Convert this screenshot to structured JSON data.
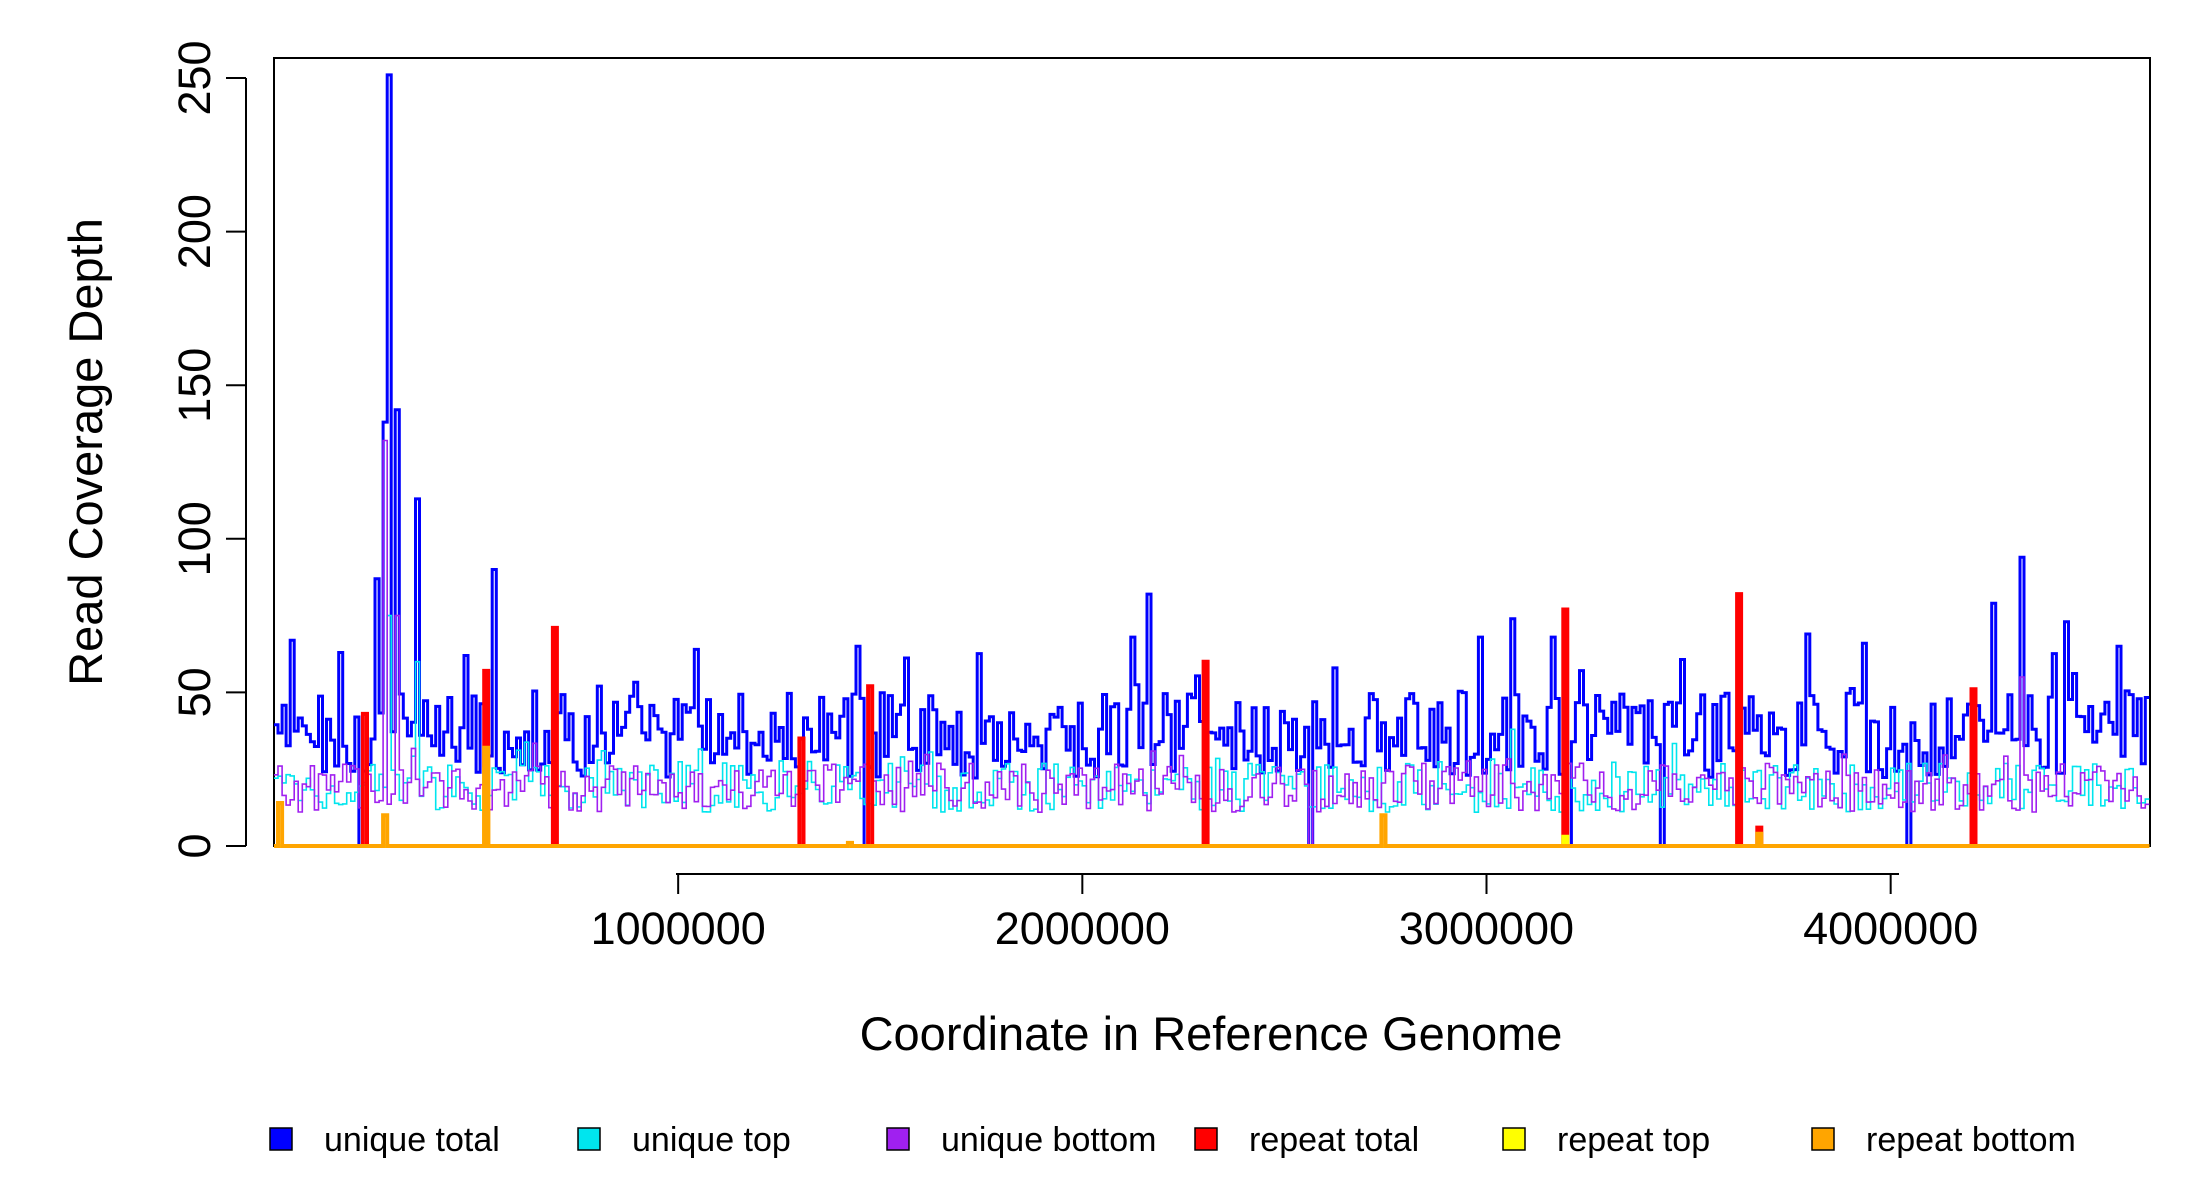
{
  "chart_data": {
    "type": "line",
    "xlabel": "Coordinate in Reference Genome",
    "ylabel": "Read Coverage Depth",
    "xlim": [
      0,
      4641652
    ],
    "ylim": [
      0,
      250
    ],
    "x_ticks": [
      1000000,
      2000000,
      3000000,
      4000000
    ],
    "x_tick_labels": [
      "1000000",
      "2000000",
      "3000000",
      "4000000"
    ],
    "y_ticks": [
      0,
      50,
      100,
      150,
      200,
      250
    ],
    "y_tick_labels": [
      "0",
      "50",
      "100",
      "150",
      "200",
      "250"
    ],
    "bin_size": 10000,
    "legend_position": "bottom",
    "series": [
      {
        "name": "unique total",
        "color": "#0000ff",
        "base": 36,
        "spikes": [
          {
            "x": 40000,
            "y": 67
          },
          {
            "x": 160000,
            "y": 63
          },
          {
            "x": 250000,
            "y": 87
          },
          {
            "x": 270000,
            "y": 138
          },
          {
            "x": 280000,
            "y": 251
          },
          {
            "x": 300000,
            "y": 142
          },
          {
            "x": 350000,
            "y": 113
          },
          {
            "x": 470000,
            "y": 62
          },
          {
            "x": 540000,
            "y": 90
          },
          {
            "x": 1040000,
            "y": 64
          },
          {
            "x": 1440000,
            "y": 65
          },
          {
            "x": 2120000,
            "y": 68
          },
          {
            "x": 2160000,
            "y": 82
          },
          {
            "x": 2980000,
            "y": 68
          },
          {
            "x": 3060000,
            "y": 74
          },
          {
            "x": 3160000,
            "y": 68
          },
          {
            "x": 3790000,
            "y": 69
          },
          {
            "x": 3930000,
            "y": 66
          },
          {
            "x": 4250000,
            "y": 79
          },
          {
            "x": 4320000,
            "y": 94
          },
          {
            "x": 4430000,
            "y": 73
          },
          {
            "x": 4560000,
            "y": 65
          }
        ],
        "dips": [
          {
            "x": 210000,
            "y": 0
          },
          {
            "x": 690000,
            "y": 0
          },
          {
            "x": 1300000,
            "y": 0
          },
          {
            "x": 1460000,
            "y": 0
          },
          {
            "x": 2300000,
            "y": 0
          },
          {
            "x": 2560000,
            "y": 0
          },
          {
            "x": 3200000,
            "y": 0
          },
          {
            "x": 3430000,
            "y": 0
          },
          {
            "x": 3620000,
            "y": 0
          },
          {
            "x": 4040000,
            "y": 0
          },
          {
            "x": 4200000,
            "y": 0
          }
        ]
      },
      {
        "name": "unique top",
        "color": "#00e5ee",
        "base": 19,
        "spikes": [
          {
            "x": 280000,
            "y": 75
          },
          {
            "x": 350000,
            "y": 60
          },
          {
            "x": 3060000,
            "y": 38
          }
        ],
        "dips": []
      },
      {
        "name": "unique bottom",
        "color": "#a020f0",
        "base": 19,
        "spikes": [
          {
            "x": 270000,
            "y": 132
          },
          {
            "x": 300000,
            "y": 75
          },
          {
            "x": 4320000,
            "y": 55
          }
        ],
        "dips": [
          {
            "x": 690000,
            "y": 0
          },
          {
            "x": 1300000,
            "y": 0
          },
          {
            "x": 2560000,
            "y": 0
          },
          {
            "x": 3620000,
            "y": 0
          },
          {
            "x": 4200000,
            "y": 0
          }
        ]
      },
      {
        "name": "repeat total",
        "color": "#ff0000",
        "base": 0,
        "spikes": [
          {
            "x": 220000,
            "y": 43
          },
          {
            "x": 520000,
            "y": 57
          },
          {
            "x": 690000,
            "y": 71
          },
          {
            "x": 1300000,
            "y": 35
          },
          {
            "x": 1470000,
            "y": 52
          },
          {
            "x": 2300000,
            "y": 60
          },
          {
            "x": 3190000,
            "y": 77
          },
          {
            "x": 3620000,
            "y": 82
          },
          {
            "x": 3670000,
            "y": 6
          },
          {
            "x": 4200000,
            "y": 51
          }
        ],
        "dips": []
      },
      {
        "name": "repeat top",
        "color": "#ffff00",
        "base": 0,
        "spikes": [
          {
            "x": 520000,
            "y": 25
          },
          {
            "x": 3190000,
            "y": 3
          }
        ],
        "dips": []
      },
      {
        "name": "repeat bottom",
        "color": "#ffa500",
        "base": 0,
        "spikes": [
          {
            "x": 10000,
            "y": 14
          },
          {
            "x": 270000,
            "y": 10
          },
          {
            "x": 520000,
            "y": 32
          },
          {
            "x": 1420000,
            "y": 1
          },
          {
            "x": 2740000,
            "y": 10
          },
          {
            "x": 3670000,
            "y": 4
          }
        ],
        "dips": []
      }
    ]
  }
}
